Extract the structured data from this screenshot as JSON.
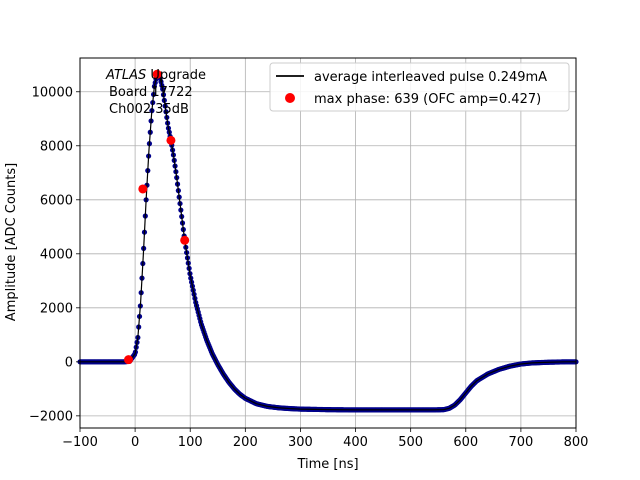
{
  "chart_data": {
    "type": "scatter",
    "xlabel": "Time [ns]",
    "ylabel": "Amplitude [ADC Counts]",
    "xlim": [
      -100,
      800
    ],
    "ylim": [
      -2450,
      11250
    ],
    "grid": true,
    "legend_position": "top-right",
    "x_ticks": [
      -100,
      0,
      100,
      200,
      300,
      400,
      500,
      600,
      700,
      800
    ],
    "y_ticks": [
      -2000,
      0,
      2000,
      4000,
      6000,
      8000,
      10000
    ],
    "x_tick_labels": [
      "−100",
      "0",
      "100",
      "200",
      "300",
      "400",
      "500",
      "600",
      "700",
      "800"
    ],
    "y_tick_labels": [
      "−2000",
      "0",
      "2000",
      "4000",
      "6000",
      "8000",
      "10000"
    ],
    "annotation": {
      "line1_italic": "ATLAS",
      "line1_rest": " Upgrade",
      "line2": "Board 17722",
      "line3": "Ch002 35dB"
    },
    "series": [
      {
        "name": "average interleaved pulse 0.249mA",
        "color": "#000000",
        "marker_color": "#00008b",
        "points": [
          [
            -100,
            0
          ],
          [
            -80,
            0
          ],
          [
            -60,
            0
          ],
          [
            -40,
            0
          ],
          [
            -20,
            0
          ],
          [
            -10,
            20
          ],
          [
            0,
            300
          ],
          [
            5,
            900
          ],
          [
            10,
            2200
          ],
          [
            15,
            4000
          ],
          [
            20,
            6000
          ],
          [
            25,
            7800
          ],
          [
            30,
            9200
          ],
          [
            35,
            10200
          ],
          [
            40,
            10650
          ],
          [
            45,
            10550
          ],
          [
            50,
            10100
          ],
          [
            55,
            9400
          ],
          [
            60,
            8700
          ],
          [
            65,
            8200
          ],
          [
            70,
            7600
          ],
          [
            75,
            6900
          ],
          [
            80,
            6100
          ],
          [
            90,
            4500
          ],
          [
            100,
            3200
          ],
          [
            110,
            2200
          ],
          [
            120,
            1400
          ],
          [
            130,
            800
          ],
          [
            140,
            300
          ],
          [
            150,
            -100
          ],
          [
            160,
            -450
          ],
          [
            170,
            -750
          ],
          [
            180,
            -1000
          ],
          [
            190,
            -1200
          ],
          [
            200,
            -1350
          ],
          [
            220,
            -1550
          ],
          [
            240,
            -1650
          ],
          [
            260,
            -1700
          ],
          [
            280,
            -1730
          ],
          [
            300,
            -1750
          ],
          [
            350,
            -1770
          ],
          [
            400,
            -1780
          ],
          [
            450,
            -1780
          ],
          [
            500,
            -1780
          ],
          [
            540,
            -1780
          ],
          [
            560,
            -1770
          ],
          [
            570,
            -1720
          ],
          [
            580,
            -1600
          ],
          [
            590,
            -1400
          ],
          [
            600,
            -1150
          ],
          [
            610,
            -900
          ],
          [
            620,
            -700
          ],
          [
            640,
            -450
          ],
          [
            660,
            -280
          ],
          [
            680,
            -160
          ],
          [
            700,
            -80
          ],
          [
            720,
            -40
          ],
          [
            750,
            -15
          ],
          [
            780,
            0
          ],
          [
            800,
            0
          ]
        ]
      },
      {
        "name": "max phase: 639 (OFC amp=0.427)",
        "color": "#ff0000",
        "points": [
          [
            -12,
            80
          ],
          [
            14,
            6400
          ],
          [
            40,
            10650
          ],
          [
            65,
            8200
          ],
          [
            90,
            4500
          ]
        ]
      }
    ]
  }
}
